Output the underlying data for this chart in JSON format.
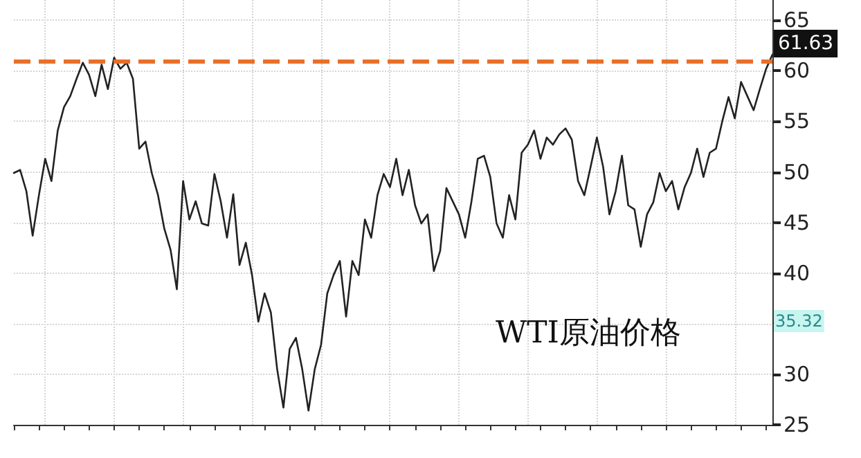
{
  "chart_data": {
    "type": "line",
    "title": "WTI原油价格",
    "categories": [
      null,
      null,
      null,
      null,
      null,
      null,
      null,
      null,
      null,
      null,
      null,
      null,
      null,
      null,
      null,
      null,
      null,
      null,
      null,
      null,
      null,
      null,
      null,
      null,
      null,
      null,
      null,
      null,
      null,
      null,
      null,
      null,
      null,
      null,
      null,
      null,
      null,
      null,
      null,
      null,
      null,
      null,
      null,
      null,
      null,
      null,
      null,
      null,
      null,
      null,
      null,
      null,
      null,
      null,
      null,
      null,
      null,
      null,
      null,
      null,
      null,
      null,
      null,
      null,
      null,
      null,
      null,
      null,
      null,
      null,
      null,
      null,
      null,
      null,
      null,
      null,
      null,
      null,
      null,
      null,
      null,
      null,
      null,
      null,
      null,
      null,
      null,
      null,
      null,
      null,
      null,
      null,
      null,
      null,
      null,
      null,
      null,
      null,
      null,
      null,
      null,
      null,
      null,
      null,
      null,
      null,
      null,
      null,
      null,
      null,
      null,
      null,
      null,
      null,
      null,
      null,
      null,
      null,
      null,
      null,
      null,
      null
    ],
    "values": [
      49.9,
      50.2,
      48.1,
      43.7,
      47.7,
      51.3,
      49.1,
      54.1,
      56.4,
      57.5,
      59.2,
      60.8,
      59.6,
      57.5,
      60.6,
      58.2,
      61.3,
      60.2,
      60.8,
      59.2,
      52.3,
      53.0,
      49.9,
      47.7,
      44.4,
      42.3,
      38.4,
      49.1,
      45.3,
      47.1,
      44.9,
      44.7,
      49.8,
      47.1,
      43.5,
      47.8,
      40.8,
      43.0,
      39.8,
      35.2,
      38.0,
      36.1,
      30.5,
      26.7,
      32.5,
      33.6,
      30.5,
      26.4,
      30.5,
      32.9,
      38.0,
      39.8,
      41.2,
      35.7,
      41.2,
      39.8,
      45.3,
      43.5,
      47.7,
      49.8,
      48.5,
      51.3,
      47.7,
      50.2,
      46.7,
      44.9,
      45.8,
      40.2,
      42.2,
      48.4,
      47.1,
      45.8,
      43.5,
      47.1,
      51.3,
      51.6,
      49.5,
      44.9,
      43.5,
      47.7,
      45.3,
      51.9,
      52.7,
      54.1,
      51.3,
      53.4,
      52.7,
      53.7,
      54.3,
      53.2,
      49.1,
      47.7,
      50.5,
      53.4,
      50.5,
      45.8,
      48.1,
      51.6,
      46.7,
      46.3,
      42.6,
      45.8,
      47.0,
      49.9,
      48.1,
      49.1,
      46.3,
      48.5,
      49.9,
      52.3,
      49.5,
      51.9,
      52.3,
      55.0,
      57.4,
      55.3,
      58.9,
      57.5,
      56.1,
      58.2,
      60.2,
      61.6
    ],
    "color": "#222222",
    "ylim": [
      25,
      67
    ],
    "yticks": [
      25,
      30,
      {
        "value": 35,
        "label": null
      },
      40,
      45,
      50,
      55,
      60,
      65
    ],
    "tick_labels": "y",
    "grid": true,
    "ref_lines": [
      {
        "axis": "y",
        "value": 61,
        "label": null,
        "color": "#e8702a",
        "line_style": "dashed"
      }
    ],
    "annotations": [
      "61.63",
      "35.32"
    ]
  }
}
